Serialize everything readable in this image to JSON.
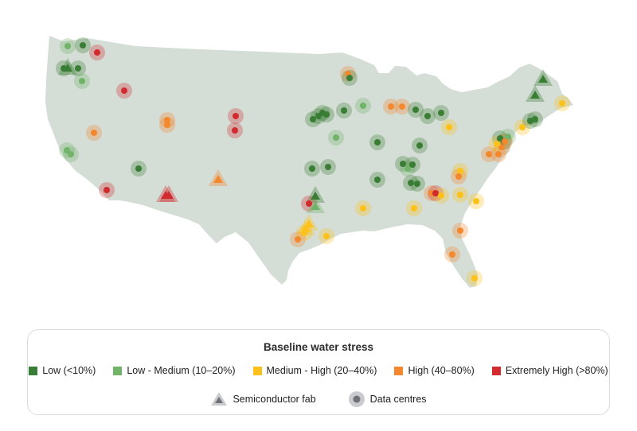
{
  "colors": {
    "land": "#d4ddd6",
    "low": "#3a7d34",
    "low_medium": "#72b36a",
    "medium_high": "#fcc21b",
    "high": "#f3882e",
    "extremely_high": "#d12b2f",
    "marker_outline": "#8a8d92"
  },
  "legend": {
    "title": "Baseline water stress",
    "categories": [
      {
        "key": "low",
        "label": "Low (<10%)"
      },
      {
        "key": "low_medium",
        "label": "Low - Medium (10–20%)"
      },
      {
        "key": "medium_high",
        "label": "Medium - High (20–40%)"
      },
      {
        "key": "high",
        "label": "High (40–80%)"
      },
      {
        "key": "extremely_high",
        "label": "Extremely High (>80%)"
      }
    ],
    "fab_label": "Semiconductor fab",
    "dc_label": "Data centres"
  }
}
